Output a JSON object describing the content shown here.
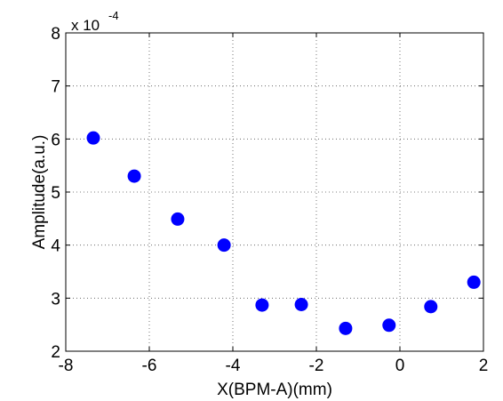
{
  "chart_data": {
    "type": "scatter",
    "xlabel": "X(BPM-A)(mm)",
    "ylabel": "Amplitude(a.u.)",
    "y_multiplier": "x 10",
    "y_exponent": "-4",
    "x": [
      -7.34,
      -6.36,
      -5.32,
      -4.21,
      -3.3,
      -2.36,
      -1.3,
      -0.26,
      0.74,
      1.77
    ],
    "values": [
      6.02,
      5.3,
      4.49,
      4.0,
      2.87,
      2.88,
      2.43,
      2.49,
      2.84,
      3.3
    ],
    "color": "#0000ff",
    "xlim": [
      -8,
      2
    ],
    "xticks": [
      -8,
      -6,
      -4,
      -2,
      0,
      2
    ],
    "ylim": [
      2,
      8
    ],
    "yticks": [
      2,
      3,
      4,
      5,
      6,
      7,
      8
    ],
    "grid": true
  }
}
